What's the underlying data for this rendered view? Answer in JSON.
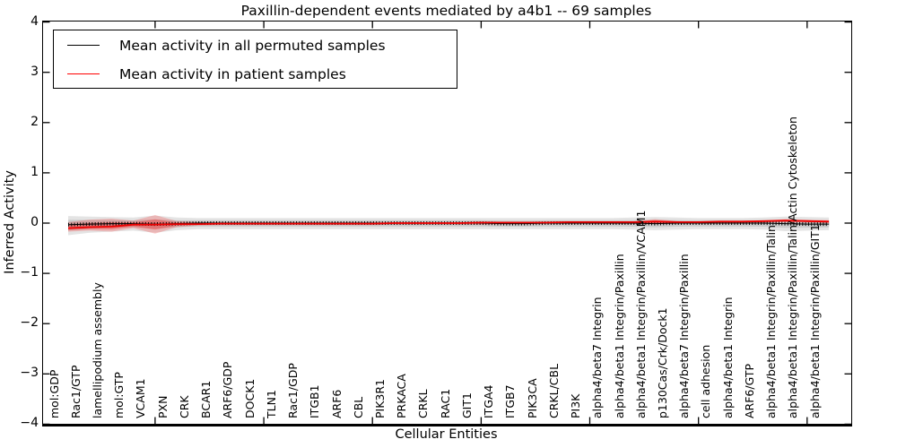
{
  "title": "Paxillin-dependent events mediated by a4b1 -- 69 samples",
  "legend": {
    "items": [
      {
        "label": "Mean activity in all permuted samples",
        "color": "#000000"
      },
      {
        "label": "Mean activity in patient samples",
        "color": "#ff0000"
      }
    ]
  },
  "axes": {
    "ylabel": "Inferred Activity",
    "xlabel": "Cellular Entities",
    "ytick_labels": [
      "4",
      "3",
      "2",
      "1",
      "0",
      "−1",
      "−2",
      "−3",
      "−4"
    ],
    "ytick_values": [
      4,
      3,
      2,
      1,
      0,
      -1,
      -2,
      -3,
      -4
    ]
  },
  "chart_data": {
    "type": "line",
    "title": "Paxillin-dependent events mediated by a4b1 -- 69 samples",
    "xlabel": "Cellular Entities",
    "ylabel": "Inferred Activity",
    "ylim": [
      -4,
      4
    ],
    "grid": false,
    "legend_position": "upper left",
    "categories": [
      "mol:GDP",
      "Rac1/GTP",
      "lamellipodium assembly",
      "mol:GTP",
      "VCAM1",
      "PXN",
      "CRK",
      "BCAR1",
      "ARF6/GDP",
      "DOCK1",
      "TLN1",
      "Rac1/GDP",
      "ITGB1",
      "ARF6",
      "CBL",
      "PIK3R1",
      "PRKACA",
      "CRKL",
      "RAC1",
      "GIT1",
      "ITGA4",
      "ITGB7",
      "PIK3CA",
      "CRKL/CBL",
      "PI3K",
      "alpha4/beta7 Integrin",
      "alpha4/beta1 Integrin/Paxillin",
      "alpha4/beta1 Integrin/Paxillin/VCAM1",
      "p130Cas/Crk/Dock1",
      "alpha4/beta7 Integrin/Paxillin",
      "cell adhesion",
      "alpha4/beta1 Integrin",
      "ARF6/GTP",
      "alpha4/beta1 Integrin/Paxillin/Talin",
      "alpha4/beta1 Integrin/Paxillin/Talin/Actin Cytoskeleton",
      "alpha4/beta1 Integrin/Paxillin/GIT1"
    ],
    "series": [
      {
        "name": "Mean activity in all permuted samples",
        "color": "#000000",
        "values": [
          -0.03,
          -0.02,
          -0.01,
          -0.01,
          -0.02,
          -0.01,
          0.0,
          0.0,
          0.0,
          0.0,
          0.0,
          0.0,
          0.0,
          0.0,
          0.0,
          0.0,
          0.0,
          0.0,
          0.0,
          0.0,
          -0.01,
          -0.01,
          0.0,
          0.0,
          0.0,
          0.0,
          0.0,
          -0.01,
          0.0,
          0.0,
          0.0,
          0.0,
          0.0,
          -0.01,
          -0.02,
          -0.02
        ]
      },
      {
        "name": "Mean activity in patient samples",
        "color": "#ee0000",
        "values": [
          -0.1,
          -0.08,
          -0.07,
          -0.03,
          -0.03,
          -0.02,
          -0.02,
          -0.01,
          -0.01,
          -0.01,
          -0.01,
          -0.01,
          -0.01,
          -0.01,
          -0.01,
          0.0,
          0.0,
          0.0,
          0.0,
          0.01,
          0.01,
          0.01,
          0.01,
          0.02,
          0.02,
          0.02,
          0.02,
          0.03,
          0.02,
          0.02,
          0.03,
          0.03,
          0.04,
          0.05,
          0.04,
          0.03
        ]
      }
    ],
    "bands": [
      {
        "name": "permuted samples range",
        "color": "#aaaaaa",
        "hi": [
          0.14,
          0.13,
          0.12,
          0.11,
          0.15,
          0.11,
          0.1,
          0.1,
          0.1,
          0.1,
          0.1,
          0.1,
          0.1,
          0.1,
          0.1,
          0.1,
          0.1,
          0.1,
          0.1,
          0.1,
          0.1,
          0.1,
          0.1,
          0.1,
          0.1,
          0.1,
          0.11,
          0.12,
          0.11,
          0.1,
          0.1,
          0.1,
          0.11,
          0.13,
          0.12,
          0.11
        ],
        "lo": [
          -0.24,
          -0.19,
          -0.17,
          -0.15,
          -0.19,
          -0.14,
          -0.12,
          -0.12,
          -0.12,
          -0.12,
          -0.12,
          -0.12,
          -0.12,
          -0.12,
          -0.12,
          -0.12,
          -0.12,
          -0.12,
          -0.12,
          -0.12,
          -0.12,
          -0.12,
          -0.12,
          -0.12,
          -0.12,
          -0.12,
          -0.13,
          -0.14,
          -0.13,
          -0.12,
          -0.12,
          -0.12,
          -0.13,
          -0.16,
          -0.15,
          -0.14
        ]
      },
      {
        "name": "patient samples range",
        "color": "#ff0000",
        "hi": [
          0.02,
          0.07,
          0.09,
          0.05,
          0.16,
          0.04,
          0.02,
          0.02,
          0.02,
          0.02,
          0.02,
          0.02,
          0.02,
          0.02,
          0.02,
          0.02,
          0.02,
          0.02,
          0.02,
          0.02,
          0.02,
          0.02,
          0.02,
          0.03,
          0.03,
          0.03,
          0.03,
          0.08,
          0.04,
          0.03,
          0.04,
          0.04,
          0.05,
          0.08,
          0.07,
          0.06
        ],
        "lo": [
          -0.17,
          -0.15,
          -0.17,
          -0.1,
          -0.21,
          -0.08,
          -0.05,
          -0.04,
          -0.04,
          -0.04,
          -0.04,
          -0.04,
          -0.04,
          -0.04,
          -0.04,
          -0.03,
          -0.03,
          -0.03,
          -0.03,
          -0.03,
          -0.02,
          -0.02,
          -0.02,
          -0.02,
          -0.02,
          -0.02,
          -0.02,
          -0.02,
          -0.01,
          -0.01,
          0.0,
          0.0,
          0.01,
          0.02,
          0.01,
          0.0
        ]
      }
    ],
    "x_major_tick_indices": [
      4,
      9,
      14,
      19,
      24,
      29,
      34
    ]
  }
}
